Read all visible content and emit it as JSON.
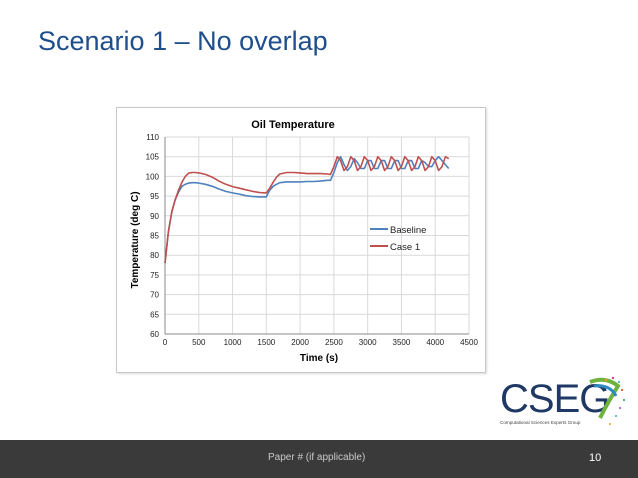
{
  "slide": {
    "title": "Scenario 1 – No overlap",
    "footer": "Paper # (if applicable)",
    "page_number": "10"
  },
  "logo": {
    "text": "CSEG",
    "subtitle": "Computational Sciences Experts Group"
  },
  "colors": {
    "baseline": "#4f81bd",
    "case1": "#c0504d",
    "title": "#1f4e8c",
    "footer_bg": "#3a3a3a"
  },
  "chart_data": {
    "type": "line",
    "title": "Oil Temperature",
    "xlabel": "Time (s)",
    "ylabel": "Temperature (deg C)",
    "xlim": [
      0,
      4500
    ],
    "ylim": [
      60,
      110
    ],
    "xticks": [
      0,
      500,
      1000,
      1500,
      2000,
      2500,
      3000,
      3500,
      4000,
      4500
    ],
    "yticks": [
      60,
      65,
      70,
      75,
      80,
      85,
      90,
      95,
      100,
      105,
      110
    ],
    "grid": true,
    "legend_position": "right",
    "series": [
      {
        "name": "Baseline",
        "x": [
          0,
          50,
          100,
          150,
          200,
          250,
          300,
          350,
          400,
          450,
          500,
          600,
          700,
          800,
          900,
          1000,
          1100,
          1200,
          1300,
          1400,
          1500,
          1550,
          1600,
          1650,
          1700,
          1800,
          1900,
          2000,
          2100,
          2200,
          2300,
          2400,
          2450,
          2500,
          2550,
          2600,
          2650,
          2700,
          2750,
          2800,
          2850,
          2900,
          2950,
          3000,
          3050,
          3100,
          3150,
          3200,
          3250,
          3300,
          3350,
          3400,
          3450,
          3500,
          3550,
          3600,
          3650,
          3700,
          3750,
          3800,
          3850,
          3900,
          3950,
          4000,
          4050,
          4100,
          4150,
          4200
        ],
        "y": [
          78,
          86,
          91,
          94,
          96,
          97.5,
          98,
          98.3,
          98.4,
          98.4,
          98.3,
          98,
          97.5,
          96.8,
          96.2,
          95.8,
          95.5,
          95.1,
          94.9,
          94.8,
          94.8,
          96.5,
          97.5,
          98.0,
          98.4,
          98.6,
          98.6,
          98.6,
          98.7,
          98.7,
          98.8,
          99.0,
          99.0,
          101.0,
          103.5,
          105.0,
          103.0,
          101.5,
          102.5,
          104.5,
          103.5,
          102.0,
          102.0,
          104.0,
          104.0,
          102.0,
          102.0,
          104.0,
          104.0,
          102.0,
          102.0,
          104.0,
          104.0,
          102.0,
          102.0,
          104.0,
          104.0,
          102.0,
          102.0,
          104.0,
          103.5,
          102.5,
          102.5,
          104.0,
          105.0,
          104.0,
          103.0,
          102.0
        ]
      },
      {
        "name": "Case 1",
        "x": [
          0,
          50,
          100,
          150,
          200,
          250,
          300,
          350,
          400,
          450,
          500,
          600,
          700,
          800,
          900,
          1000,
          1100,
          1200,
          1300,
          1400,
          1500,
          1550,
          1600,
          1650,
          1700,
          1800,
          1900,
          2000,
          2100,
          2200,
          2300,
          2400,
          2450,
          2500,
          2550,
          2600,
          2650,
          2700,
          2750,
          2800,
          2850,
          2900,
          2950,
          3000,
          3050,
          3100,
          3150,
          3200,
          3250,
          3300,
          3350,
          3400,
          3450,
          3500,
          3550,
          3600,
          3650,
          3700,
          3750,
          3800,
          3850,
          3900,
          3950,
          4000,
          4050,
          4100,
          4150,
          4200
        ],
        "y": [
          78,
          86,
          91,
          94,
          96.5,
          98.5,
          100,
          100.8,
          101.0,
          101.0,
          100.9,
          100.5,
          99.8,
          98.8,
          98.0,
          97.4,
          97.0,
          96.6,
          96.2,
          95.9,
          95.8,
          97.0,
          98.5,
          99.8,
          100.6,
          101.0,
          101.0,
          100.9,
          100.7,
          100.7,
          100.7,
          100.6,
          100.5,
          102.5,
          105.0,
          104.0,
          101.5,
          102.5,
          105.0,
          104.0,
          101.5,
          102.5,
          105.0,
          104.0,
          101.5,
          102.5,
          105.0,
          104.0,
          101.5,
          102.5,
          105.0,
          104.0,
          101.5,
          102.5,
          105.0,
          104.0,
          101.5,
          102.5,
          105.0,
          104.0,
          101.5,
          102.5,
          105.0,
          104.0,
          101.5,
          102.5,
          105.0,
          104.5
        ]
      }
    ]
  }
}
